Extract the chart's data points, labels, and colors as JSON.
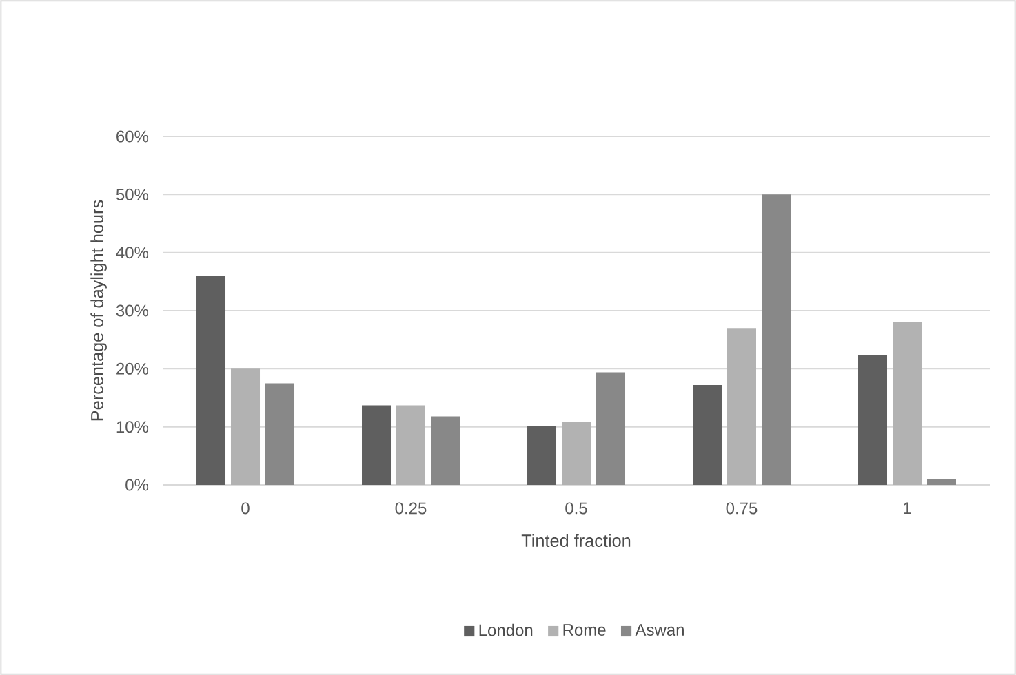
{
  "chart_data": {
    "type": "bar",
    "xlabel": "Tinted fraction",
    "ylabel": "Percentage of daylight hours",
    "categories": [
      "0",
      "0.25",
      "0.5",
      "0.75",
      "1"
    ],
    "series": [
      {
        "name": "London",
        "color": "#5f5f5f",
        "values": [
          36,
          13.7,
          10.1,
          17.2,
          22.3
        ]
      },
      {
        "name": "Rome",
        "color": "#b2b2b2",
        "values": [
          20,
          13.7,
          10.8,
          27,
          28
        ]
      },
      {
        "name": "Aswan",
        "color": "#888888",
        "values": [
          17.5,
          11.8,
          19.4,
          50,
          1
        ]
      }
    ],
    "ylim": [
      0,
      60
    ],
    "yticks": [
      {
        "value": 0,
        "label": "0%"
      },
      {
        "value": 10,
        "label": "10%"
      },
      {
        "value": 20,
        "label": "20%"
      },
      {
        "value": 30,
        "label": "30%"
      },
      {
        "value": 40,
        "label": "40%"
      },
      {
        "value": 50,
        "label": "50%"
      },
      {
        "value": 60,
        "label": "60%"
      }
    ],
    "grid": "y",
    "legend": "bottom"
  }
}
